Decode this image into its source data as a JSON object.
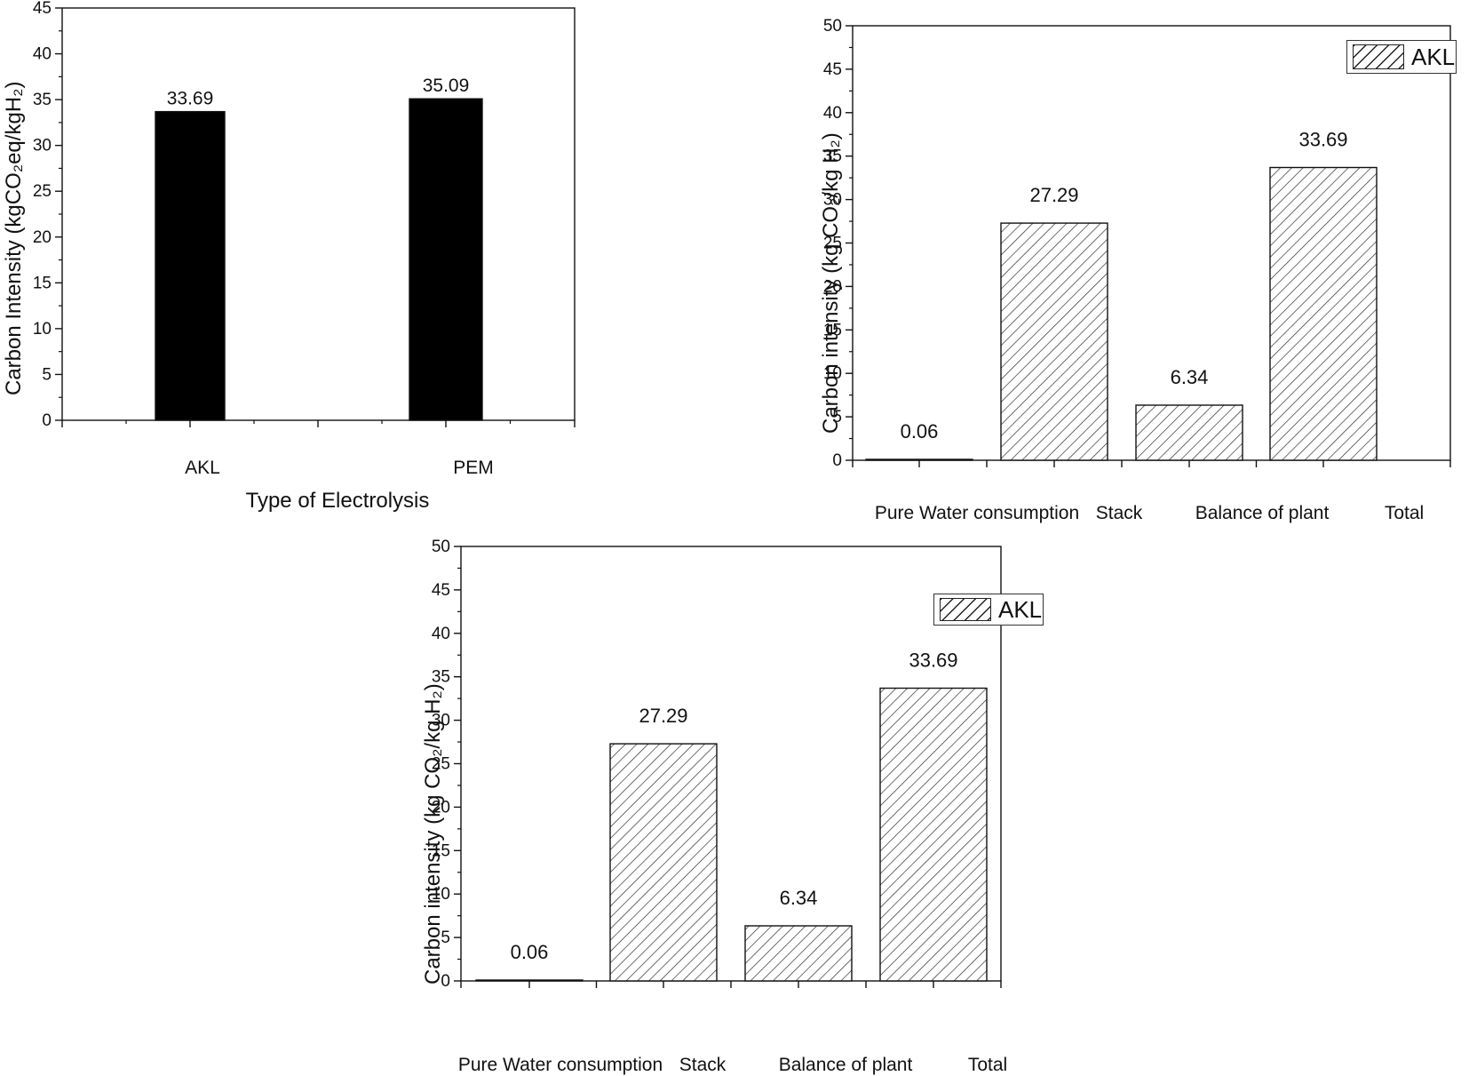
{
  "chart_data": [
    {
      "type": "bar",
      "categories": [
        "AKL",
        "PEM"
      ],
      "values": [
        33.69,
        35.09
      ],
      "data_labels": [
        "33.69",
        "35.09"
      ],
      "ylim": [
        0,
        45
      ],
      "yticks": [
        "0",
        "5",
        "10",
        "15",
        "20",
        "25",
        "30",
        "35",
        "40",
        "45"
      ],
      "xlabel": "Type of Electrolysis",
      "ylabel": "Carbon Intensity (kgCO₂eq/kgH₂)",
      "bar_fill": "solid",
      "bar_color": "#000000",
      "legend": null
    },
    {
      "type": "bar",
      "categories": [
        "Pure Water consumption",
        "Stack",
        "Balance of plant",
        "Total"
      ],
      "values": [
        0.06,
        27.29,
        6.34,
        33.69
      ],
      "data_labels": [
        "0.06",
        "27.29",
        "6.34",
        "33.69"
      ],
      "ylim": [
        0,
        50
      ],
      "yticks": [
        "0",
        "5",
        "10",
        "15",
        "20",
        "25",
        "30",
        "35",
        "40",
        "45",
        "50"
      ],
      "xlabel": "",
      "ylabel": "Carbon intensity (kg CO₂/kg H₂)",
      "bar_fill": "diagonal-hatch",
      "bar_color": "#222222",
      "series": [
        {
          "name": "AKL",
          "values": [
            0.06,
            27.29,
            6.34,
            33.69
          ]
        }
      ],
      "legend": {
        "entries": [
          "AKL"
        ],
        "position": "top-right"
      }
    },
    {
      "type": "bar",
      "categories": [
        "Pure Water consumption",
        "Stack",
        "Balance of plant",
        "Total"
      ],
      "values": [
        0.06,
        27.29,
        6.34,
        33.69
      ],
      "data_labels": [
        "0.06",
        "27.29",
        "6.34",
        "33.69"
      ],
      "ylim": [
        0,
        50
      ],
      "yticks": [
        "0",
        "5",
        "10",
        "15",
        "20",
        "25",
        "30",
        "35",
        "40",
        "45",
        "50"
      ],
      "xlabel": "",
      "ylabel": "Carbon intensity (kg CO₂/kg H₂)",
      "bar_fill": "diagonal-hatch",
      "bar_color": "#222222",
      "series": [
        {
          "name": "AKL",
          "values": [
            0.06,
            27.29,
            6.34,
            33.69
          ]
        }
      ],
      "legend": {
        "entries": [
          "AKL"
        ],
        "position": "top-right"
      }
    }
  ]
}
